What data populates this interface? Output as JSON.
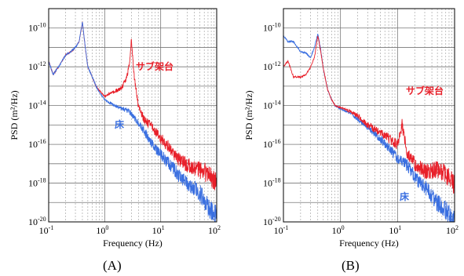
{
  "chart_data": [
    {
      "type": "line",
      "panel_label": "(A)",
      "xlabel": "Frequency (Hz)",
      "ylabel": "PSD (m²/Hz)",
      "xscale": "log",
      "yscale": "log",
      "xlim": [
        0.1,
        100
      ],
      "ylim": [
        1e-20,
        1e-09
      ],
      "x_ticks": [
        {
          "base": "10",
          "exp": "-1"
        },
        {
          "base": "10",
          "exp": "0"
        },
        {
          "base": "10",
          "exp": "1"
        },
        {
          "base": "10",
          "exp": "2"
        }
      ],
      "y_ticks": [
        {
          "base": "10",
          "exp": "-20"
        },
        {
          "base": "10",
          "exp": "-18"
        },
        {
          "base": "10",
          "exp": "-16"
        },
        {
          "base": "10",
          "exp": "-14"
        },
        {
          "base": "10",
          "exp": "-12"
        },
        {
          "base": "10",
          "exp": "-10"
        }
      ],
      "grid": true,
      "series": [
        {
          "name": "サブ架台",
          "color": "#e8202a",
          "x": [
            0.1,
            0.12,
            0.15,
            0.2,
            0.25,
            0.3,
            0.35,
            0.4,
            0.45,
            0.5,
            0.6,
            0.7,
            0.8,
            1.0,
            1.2,
            1.5,
            2.0,
            2.5,
            2.8,
            3.0,
            3.3,
            4.0,
            5.0,
            7.0,
            10,
            15,
            20,
            30,
            50,
            70,
            100
          ],
          "y": [
            2e-12,
            4e-13,
            1e-12,
            4e-12,
            6e-12,
            1e-11,
            2e-11,
            2e-10,
            1e-11,
            1e-12,
            3e-13,
            1e-13,
            6e-14,
            3e-14,
            4e-14,
            5e-14,
            8e-14,
            3e-13,
            2e-12,
            3e-11,
            5e-13,
            1e-14,
            2e-15,
            8e-16,
            2e-16,
            6e-17,
            2e-17,
            8e-18,
            5e-18,
            3e-18,
            1e-18
          ],
          "label_text": "サブ架台"
        },
        {
          "name": "床",
          "color": "#3a6fe0",
          "x": [
            0.1,
            0.12,
            0.15,
            0.2,
            0.25,
            0.3,
            0.35,
            0.4,
            0.45,
            0.5,
            0.6,
            0.7,
            0.8,
            1.0,
            1.5,
            2.0,
            3.0,
            5.0,
            7.0,
            10,
            15,
            20,
            30,
            50,
            70,
            100
          ],
          "y": [
            2e-12,
            4e-13,
            1e-12,
            4e-12,
            6e-12,
            1e-11,
            2e-11,
            2e-10,
            1e-11,
            1e-12,
            3e-13,
            1e-13,
            5e-14,
            2e-14,
            1e-14,
            7e-15,
            4e-15,
            5e-16,
            1e-16,
            3e-17,
            8e-18,
            3e-18,
            1e-18,
            3e-19,
            6e-20,
            2e-20
          ],
          "label_text": "床"
        }
      ]
    },
    {
      "type": "line",
      "panel_label": "(B)",
      "xlabel": "Frequency (Hz)",
      "ylabel": "PSD (m²/Hz)",
      "xscale": "log",
      "yscale": "log",
      "xlim": [
        0.1,
        100
      ],
      "ylim": [
        1e-20,
        1e-09
      ],
      "x_ticks": [
        {
          "base": "10",
          "exp": "-1"
        },
        {
          "base": "10",
          "exp": "0"
        },
        {
          "base": "10",
          "exp": "1"
        },
        {
          "base": "10",
          "exp": "2"
        }
      ],
      "y_ticks": [
        {
          "base": "10",
          "exp": "-20"
        },
        {
          "base": "10",
          "exp": "-18"
        },
        {
          "base": "10",
          "exp": "-16"
        },
        {
          "base": "10",
          "exp": "-14"
        },
        {
          "base": "10",
          "exp": "-12"
        },
        {
          "base": "10",
          "exp": "-10"
        }
      ],
      "grid": true,
      "series": [
        {
          "name": "サブ架台",
          "color": "#e8202a",
          "x": [
            0.1,
            0.12,
            0.15,
            0.2,
            0.25,
            0.3,
            0.35,
            0.4,
            0.45,
            0.5,
            0.6,
            0.7,
            0.8,
            1.0,
            1.5,
            2.0,
            3.0,
            5.0,
            7.0,
            10,
            12,
            15,
            20,
            30,
            50,
            70,
            100
          ],
          "y": [
            1e-12,
            2e-12,
            3e-13,
            3e-13,
            4e-13,
            1e-12,
            3e-12,
            4e-11,
            6e-12,
            8e-13,
            6e-14,
            2e-14,
            1e-14,
            8e-15,
            5e-15,
            3e-15,
            1e-15,
            4e-16,
            2e-16,
            1e-16,
            1e-15,
            3e-17,
            1e-17,
            4e-18,
            5e-18,
            3e-18,
            8e-19
          ],
          "label_text": "サブ架台"
        },
        {
          "name": "床",
          "color": "#3a6fe0",
          "x": [
            0.1,
            0.12,
            0.15,
            0.2,
            0.25,
            0.3,
            0.35,
            0.4,
            0.45,
            0.5,
            0.6,
            0.7,
            0.8,
            1.0,
            1.5,
            2.0,
            3.0,
            5.0,
            7.0,
            10,
            15,
            20,
            30,
            50,
            70,
            100
          ],
          "y": [
            4e-11,
            2e-11,
            2e-11,
            6e-12,
            5e-12,
            3e-12,
            1e-11,
            5e-11,
            8e-12,
            8e-13,
            6e-14,
            2e-14,
            1e-14,
            7e-15,
            4e-15,
            2e-15,
            8e-16,
            2e-16,
            6e-17,
            2e-17,
            8e-18,
            2e-18,
            6e-19,
            1e-19,
            4e-20,
            1e-20
          ],
          "label_text": "床"
        }
      ]
    }
  ]
}
